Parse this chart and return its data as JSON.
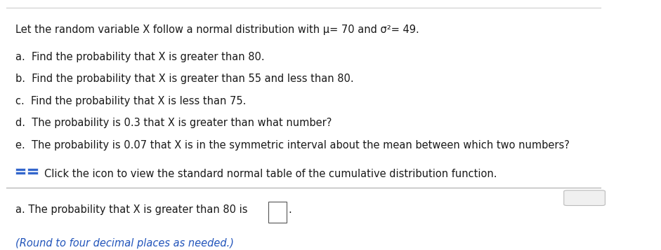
{
  "bg_color": "#ffffff",
  "top_line_color": "#cccccc",
  "mid_line_color": "#aaaaaa",
  "title_text": "Let the random variable X follow a normal distribution with μ​= 70 and σ²​= 49.",
  "items": [
    "a.  Find the probability that X is greater than 80.",
    "b.  Find the probability that X is greater than 55 and less than 80.",
    "c.  Find the probability that X is less than 75.",
    "d.  The probability is 0.3 that X is greater than what number?",
    "e.  The probability is 0.07 that X is in the symmetric interval about the mean between which two numbers?"
  ],
  "click_text": "Click the icon to view the standard normal table of the cumulative distribution function.",
  "answer_text_pre": "a. The probability that X is greater than 80 is ",
  "answer_text_post": ".",
  "round_note": "(Round to four decimal places as needed.)",
  "main_font_size": 10.5,
  "answer_font_size": 10.5,
  "round_font_size": 10.5,
  "text_color": "#1a1a1a",
  "blue_color": "#2255bb",
  "icon_color": "#3366cc",
  "dots_color": "#777777"
}
